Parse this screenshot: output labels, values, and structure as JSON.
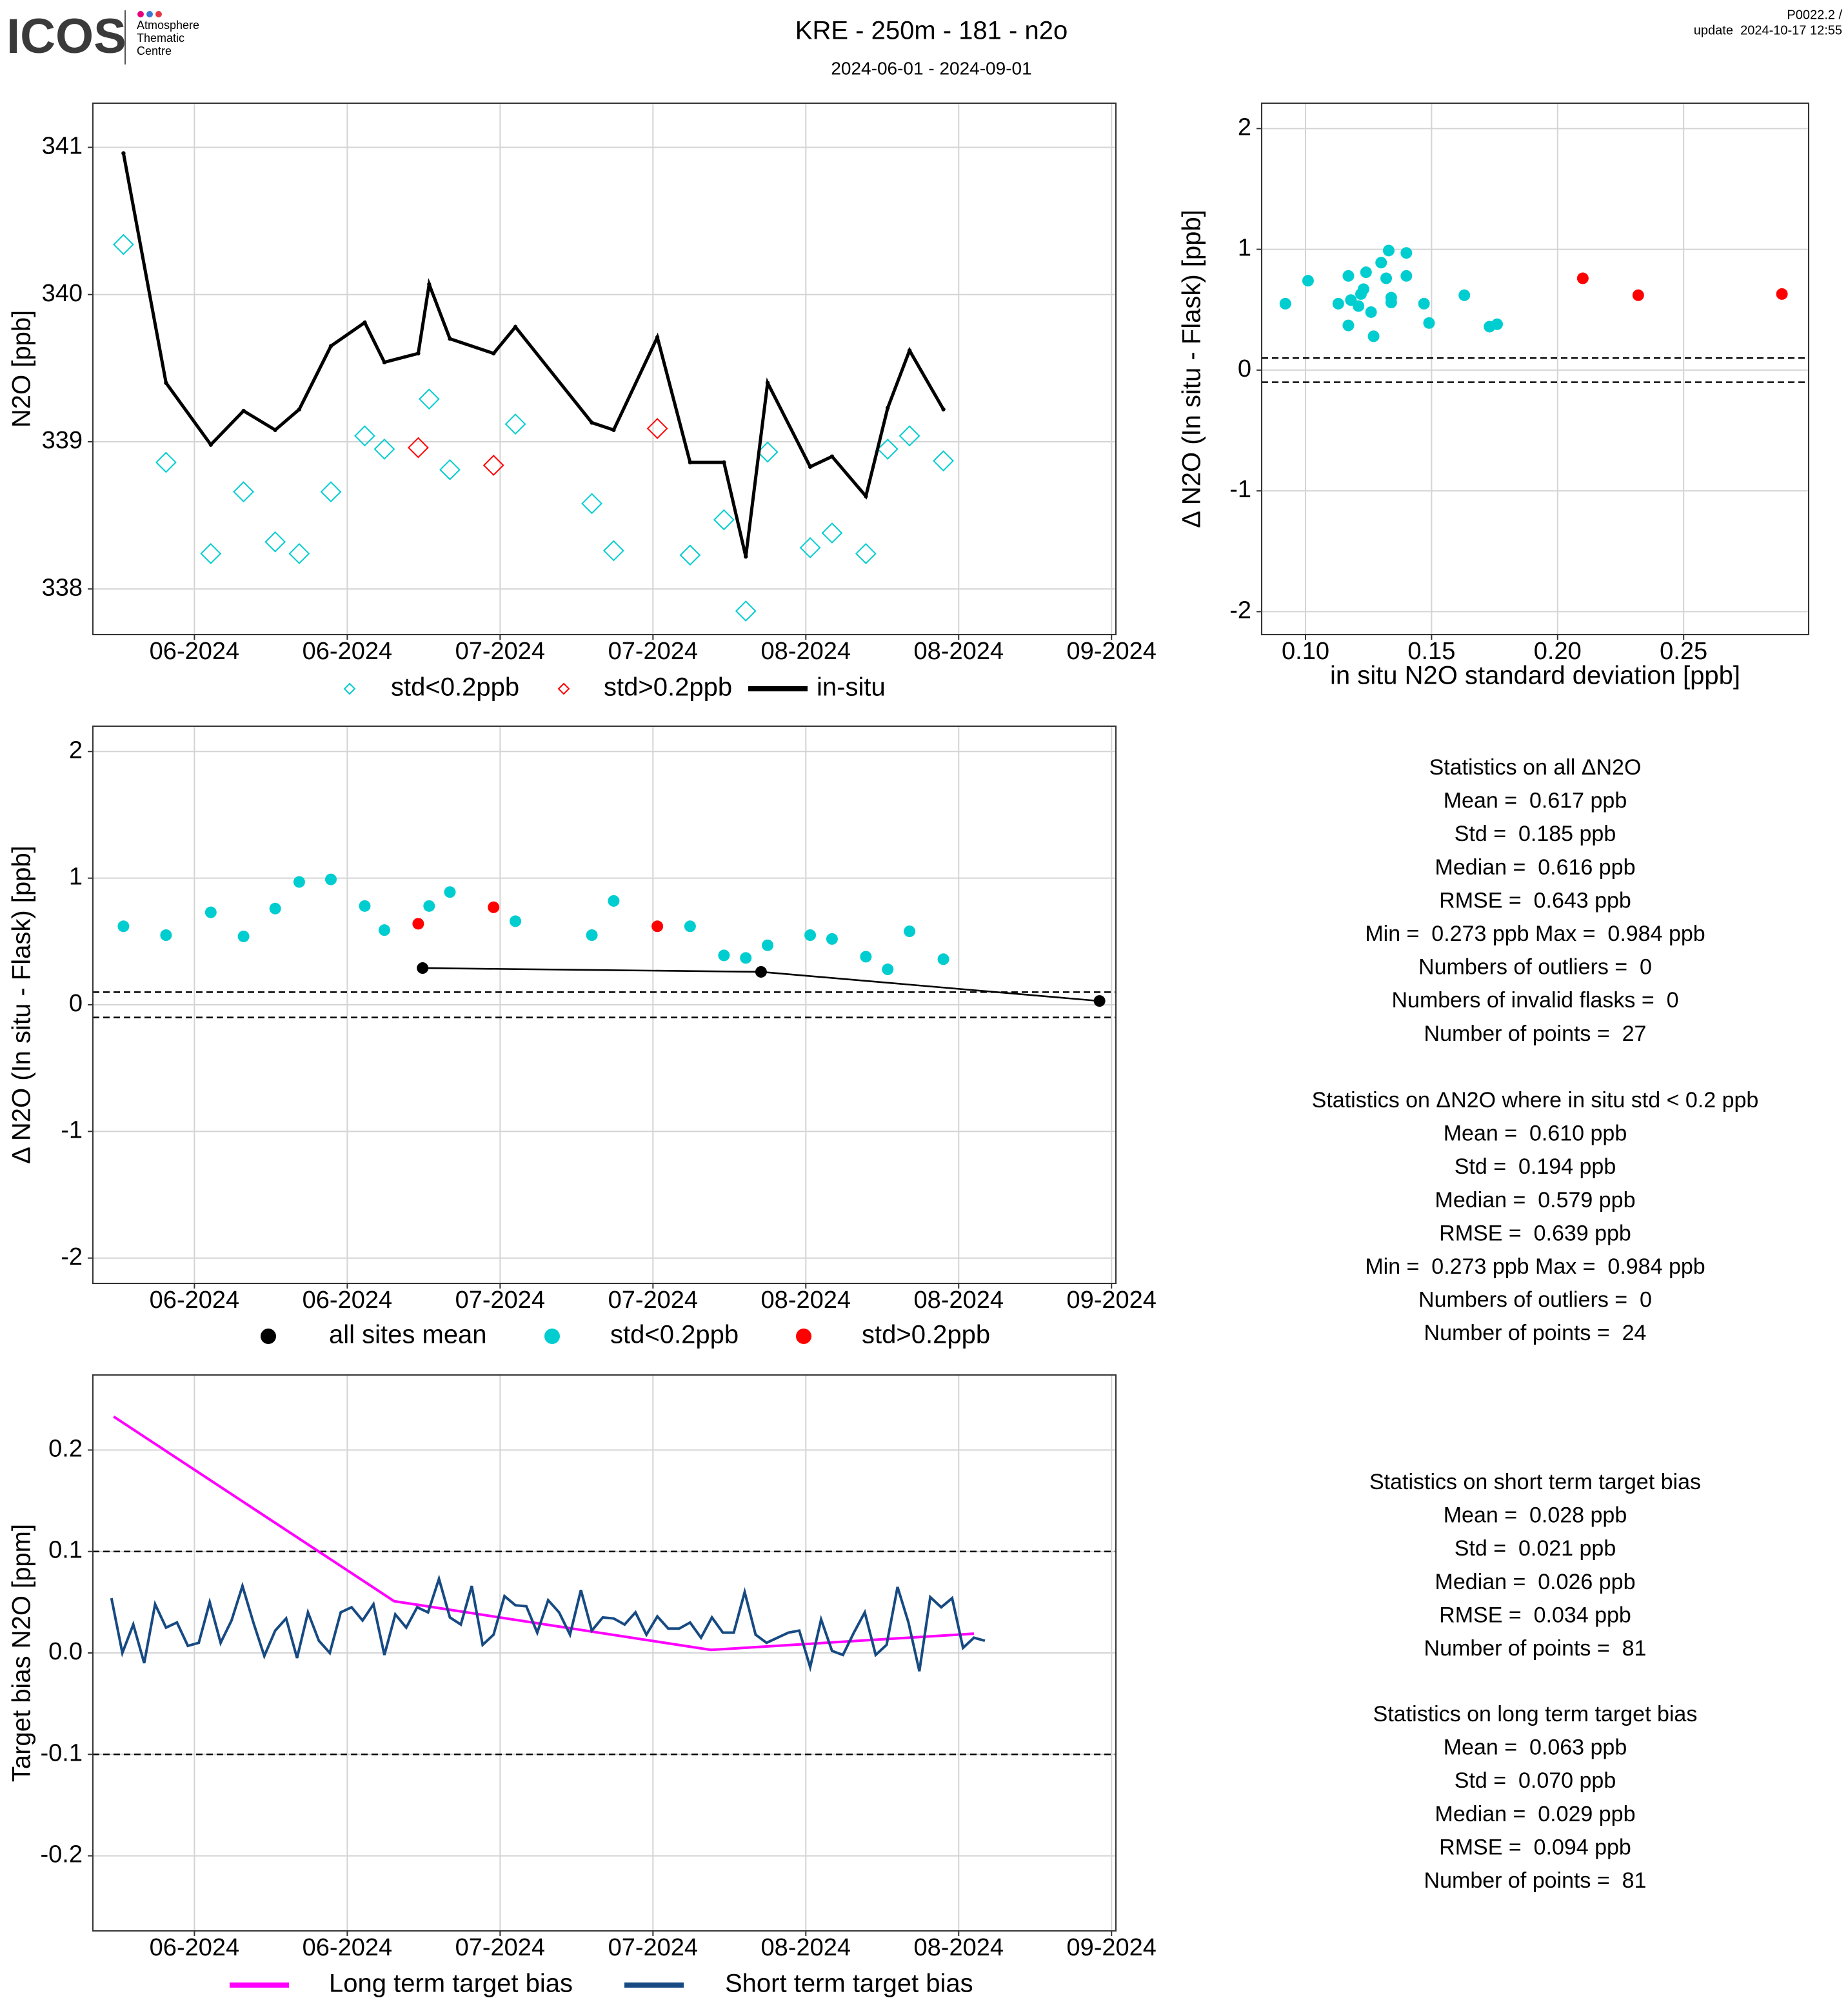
{
  "header": {
    "logo": "ICOS",
    "logo_text": [
      "Atmosphere",
      "Thematic",
      "Centre"
    ],
    "title": "KRE - 250m - 181 - n2o",
    "subtitle": "2024-06-01 - 2024-09-01",
    "version": "P0022.2 /",
    "update": "update  2024-10-17 12:55"
  },
  "chart_data": [
    {
      "type": "line",
      "ylabel": "N2O [ppb]",
      "xlim": [
        -9.3,
        84.4
      ],
      "xticks": [
        {
          "value": 0,
          "label": "06-2024"
        },
        {
          "value": 14,
          "label": "06-2024"
        },
        {
          "value": 28,
          "label": "07-2024"
        },
        {
          "value": 42,
          "label": "07-2024"
        },
        {
          "value": 56,
          "label": "08-2024"
        },
        {
          "value": 70,
          "label": "08-2024"
        },
        {
          "value": 84,
          "label": "09-2024"
        }
      ],
      "ylim": [
        337.69,
        341.3
      ],
      "yticks": [
        338,
        339,
        340,
        341
      ],
      "grid": true,
      "series": [
        {
          "name": "std<0.2ppb",
          "color": "#00cdd0",
          "marker": "diamond",
          "line": false,
          "x": [
            -6.5,
            -2.6,
            1.5,
            4.5,
            7.4,
            9.6,
            12.5,
            15.6,
            17.4,
            21.5,
            23.4,
            29.4,
            36.4,
            38.4,
            45.4,
            48.5,
            50.5,
            52.5,
            56.4,
            58.4,
            61.5,
            63.5,
            65.5,
            68.6
          ],
          "values": [
            340.34,
            338.86,
            338.24,
            338.66,
            338.32,
            338.24,
            338.66,
            339.04,
            338.95,
            339.29,
            338.81,
            339.12,
            338.58,
            338.26,
            338.23,
            338.47,
            337.85,
            338.93,
            338.28,
            338.38,
            338.24,
            338.95,
            339.04,
            338.87
          ]
        },
        {
          "name": "std>0.2ppb",
          "color": "#ff0000",
          "marker": "diamond",
          "line": false,
          "x": [
            20.5,
            27.4,
            42.4
          ],
          "values": [
            338.96,
            338.84,
            339.09
          ]
        },
        {
          "name": "in-situ",
          "color": "#000000",
          "marker": "dot",
          "line": true,
          "x": [
            -6.5,
            -2.6,
            1.5,
            4.5,
            7.4,
            9.6,
            12.5,
            15.6,
            17.4,
            20.5,
            21.5,
            23.4,
            27.4,
            29.4,
            36.4,
            38.4,
            42.4,
            45.4,
            48.5,
            50.5,
            52.5,
            56.4,
            58.4,
            61.5,
            63.5,
            65.5,
            68.6
          ],
          "values": [
            340.96,
            339.4,
            338.98,
            339.21,
            339.08,
            339.22,
            339.65,
            339.81,
            339.54,
            339.6,
            340.07,
            339.7,
            339.6,
            339.78,
            339.13,
            339.08,
            339.71,
            338.86,
            338.86,
            338.22,
            339.4,
            338.83,
            338.9,
            338.63,
            339.23,
            339.62,
            339.22
          ]
        }
      ]
    },
    {
      "type": "scatter",
      "xlabel": "in situ N2O standard deviation [ppb]",
      "ylabel": "Δ N2O (In situ - Flask) [ppb]",
      "xlim": [
        0.0826,
        0.2996
      ],
      "xticks": [
        {
          "value": 0.1,
          "label": "0.10"
        },
        0.15,
        {
          "value": 0.2,
          "label": "0.20"
        },
        0.25
      ],
      "ylim": [
        -2.19,
        2.21
      ],
      "yticks": [
        -2,
        -1,
        0,
        1,
        2
      ],
      "grid": true,
      "hlines": [
        0.1,
        -0.1
      ],
      "series": [
        {
          "color": "#00cdd0",
          "marker": "circle",
          "line": false,
          "x": [
            0.092,
            0.101,
            0.113,
            0.117,
            0.117,
            0.118,
            0.121,
            0.122,
            0.123,
            0.124,
            0.126,
            0.127,
            0.13,
            0.132,
            0.133,
            0.134,
            0.134,
            0.14,
            0.14,
            0.147,
            0.149,
            0.163,
            0.173,
            0.176
          ],
          "values": [
            0.55,
            0.74,
            0.55,
            0.78,
            0.37,
            0.58,
            0.53,
            0.63,
            0.67,
            0.81,
            0.48,
            0.28,
            0.89,
            0.76,
            0.99,
            0.56,
            0.6,
            0.97,
            0.78,
            0.55,
            0.39,
            0.62,
            0.36,
            0.38
          ]
        },
        {
          "color": "#ff0000",
          "marker": "circle",
          "line": false,
          "x": [
            0.21,
            0.232,
            0.289
          ],
          "values": [
            0.76,
            0.62,
            0.63
          ]
        }
      ]
    },
    {
      "type": "scatter",
      "ylabel": "Δ N2O (In situ - Flask) [ppb]",
      "xlim": [
        -9.3,
        84.4
      ],
      "xticks": [
        {
          "value": 0,
          "label": "06-2024"
        },
        {
          "value": 14,
          "label": "06-2024"
        },
        {
          "value": 28,
          "label": "07-2024"
        },
        {
          "value": 42,
          "label": "07-2024"
        },
        {
          "value": 56,
          "label": "08-2024"
        },
        {
          "value": 70,
          "label": "08-2024"
        },
        {
          "value": 84,
          "label": "09-2024"
        }
      ],
      "ylim": [
        -2.2,
        2.2
      ],
      "yticks": [
        -2,
        -1,
        0,
        1,
        2
      ],
      "grid": true,
      "hlines": [
        0.1,
        -0.1
      ],
      "series": [
        {
          "name": "all sites mean",
          "color": "#000000",
          "marker": "circle",
          "line": true,
          "x": [
            20.9,
            51.9,
            82.9
          ],
          "values": [
            0.29,
            0.26,
            0.03
          ]
        },
        {
          "name": "std<0.2ppb",
          "color": "#00cdd0",
          "marker": "circle",
          "line": false,
          "x": [
            -6.5,
            -2.6,
            1.5,
            4.5,
            7.4,
            9.6,
            12.5,
            15.6,
            17.4,
            21.5,
            23.4,
            29.4,
            36.4,
            38.4,
            45.4,
            48.5,
            50.5,
            52.5,
            56.4,
            58.4,
            61.5,
            63.5,
            65.5,
            68.6
          ],
          "values": [
            0.62,
            0.55,
            0.73,
            0.54,
            0.76,
            0.97,
            0.99,
            0.78,
            0.59,
            0.78,
            0.89,
            0.66,
            0.55,
            0.82,
            0.62,
            0.39,
            0.37,
            0.47,
            0.55,
            0.52,
            0.38,
            0.28,
            0.58,
            0.36
          ]
        },
        {
          "name": "std>0.2ppb",
          "color": "#ff0000",
          "marker": "circle",
          "line": false,
          "x": [
            20.5,
            27.4,
            42.4
          ],
          "values": [
            0.64,
            0.77,
            0.62
          ]
        }
      ]
    },
    {
      "type": "line",
      "ylabel": "Target bias N2O [ppm]",
      "xlim": [
        -9.3,
        84.4
      ],
      "xticks": [
        {
          "value": 0,
          "label": "06-2024"
        },
        {
          "value": 14,
          "label": "06-2024"
        },
        {
          "value": 28,
          "label": "07-2024"
        },
        {
          "value": 42,
          "label": "07-2024"
        },
        {
          "value": 56,
          "label": "08-2024"
        },
        {
          "value": 70,
          "label": "08-2024"
        },
        {
          "value": 84,
          "label": "09-2024"
        }
      ],
      "ylim": [
        -0.274,
        0.274
      ],
      "yticks": [
        -0.2,
        -0.1,
        {
          "value": 0,
          "label": "0.0"
        },
        0.1,
        0.2
      ],
      "grid": true,
      "hlines": [
        0.1,
        -0.1
      ],
      "series": [
        {
          "name": "Long term target bias",
          "color": "#ff00ff",
          "marker": null,
          "line": true,
          "x": [
            -7.4,
            18.3,
            47.3,
            71.4
          ],
          "values": [
            0.233,
            0.051,
            0.003,
            0.019
          ]
        },
        {
          "name": "Short term target bias",
          "color": "#174a82",
          "marker": null,
          "line": true,
          "x": [
            -7.6,
            -6.6,
            -5.6,
            -4.6,
            -3.6,
            -2.6,
            -1.6,
            -0.6,
            0.4,
            1.4,
            2.4,
            3.4,
            4.4,
            5.4,
            6.4,
            7.4,
            8.4,
            9.4,
            10.4,
            11.4,
            12.4,
            13.4,
            14.4,
            15.4,
            16.4,
            17.4,
            18.4,
            19.4,
            20.4,
            21.4,
            22.4,
            23.4,
            24.4,
            25.4,
            26.4,
            27.4,
            28.4,
            29.4,
            30.4,
            31.4,
            32.4,
            33.4,
            34.4,
            35.4,
            36.4,
            37.4,
            38.4,
            39.4,
            40.4,
            41.4,
            42.4,
            43.4,
            44.4,
            45.4,
            46.4,
            47.4,
            48.4,
            49.4,
            50.4,
            51.4,
            52.4,
            53.4,
            54.4,
            55.4,
            56.4,
            57.4,
            58.4,
            59.4,
            60.4,
            61.4,
            62.4,
            63.4,
            64.4,
            65.4,
            66.4,
            67.4,
            68.4,
            69.4,
            70.4,
            71.4,
            72.4
          ],
          "values": [
            0.054,
            0.0,
            0.028,
            -0.01,
            0.048,
            0.025,
            0.03,
            0.007,
            0.01,
            0.05,
            0.01,
            0.032,
            0.066,
            0.03,
            -0.003,
            0.022,
            0.034,
            -0.005,
            0.04,
            0.012,
            0.0,
            0.04,
            0.045,
            0.032,
            0.048,
            -0.002,
            0.038,
            0.025,
            0.045,
            0.04,
            0.073,
            0.035,
            0.028,
            0.066,
            0.008,
            0.018,
            0.056,
            0.047,
            0.046,
            0.02,
            0.052,
            0.04,
            0.018,
            0.062,
            0.022,
            0.035,
            0.034,
            0.028,
            0.04,
            0.018,
            0.036,
            0.024,
            0.024,
            0.03,
            0.015,
            0.035,
            0.02,
            0.02,
            0.06,
            0.018,
            0.01,
            0.015,
            0.02,
            0.022,
            -0.014,
            0.033,
            0.002,
            -0.002,
            0.02,
            0.04,
            -0.002,
            0.008,
            0.065,
            0.03,
            -0.018,
            0.055,
            0.045,
            0.054,
            0.005,
            0.015,
            0.012
          ]
        }
      ]
    }
  ],
  "stats": [
    {
      "lines": [
        "Statistics on all ΔN2O",
        "Mean =  0.617 ppb",
        "Std =  0.185 ppb",
        "Median =  0.616 ppb",
        "RMSE =  0.643 ppb",
        "Min =  0.273 ppb Max =  0.984 ppb",
        "Numbers of outliers =  0",
        "Numbers of invalid flasks =  0",
        "Number of points =  27"
      ]
    },
    {
      "lines": [
        "Statistics on ΔN2O where in situ std < 0.2 ppb",
        "Mean =  0.610 ppb",
        "Std =  0.194 ppb",
        "Median =  0.579 ppb",
        "RMSE =  0.639 ppb",
        "Min =  0.273 ppb Max =  0.984 ppb",
        "Numbers of outliers =  0",
        "Number of points =  24"
      ]
    },
    {
      "lines": [
        "Statistics on short term target bias",
        "Mean =  0.028 ppb",
        "Std =  0.021 ppb",
        "Median =  0.026 ppb",
        "RMSE =  0.034 ppb",
        "Number of points =  81"
      ]
    },
    {
      "lines": [
        "Statistics on long term target bias",
        "Mean =  0.063 ppb",
        "Std =  0.070 ppb",
        "Median =  0.029 ppb",
        "RMSE =  0.094 ppb",
        "Number of points =  81"
      ]
    }
  ]
}
